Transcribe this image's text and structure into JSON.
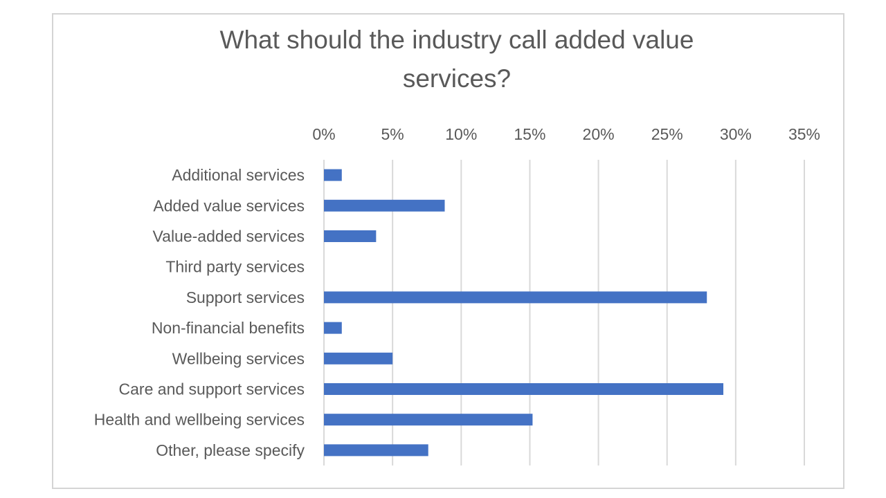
{
  "chart_data": {
    "type": "bar",
    "orientation": "horizontal",
    "title_lines": [
      "What should the industry call added value",
      "services?"
    ],
    "categories": [
      "Additional services",
      "Added value services",
      "Value-added services",
      "Third party services",
      "Support services",
      "Non-financial benefits",
      "Wellbeing services",
      "Care and support services",
      "Health and wellbeing services",
      "Other, please specify"
    ],
    "values": [
      1.3,
      8.8,
      3.8,
      0,
      27.9,
      1.3,
      5.0,
      29.1,
      15.2,
      7.6
    ],
    "x_ticks": [
      "0%",
      "5%",
      "10%",
      "15%",
      "20%",
      "25%",
      "30%",
      "35%"
    ],
    "xlim": [
      0,
      35
    ],
    "xaxis_position": "top",
    "grid": true,
    "bar_color": "#4472c4",
    "grid_color": "#d9d9d9",
    "text_color": "#595959"
  }
}
